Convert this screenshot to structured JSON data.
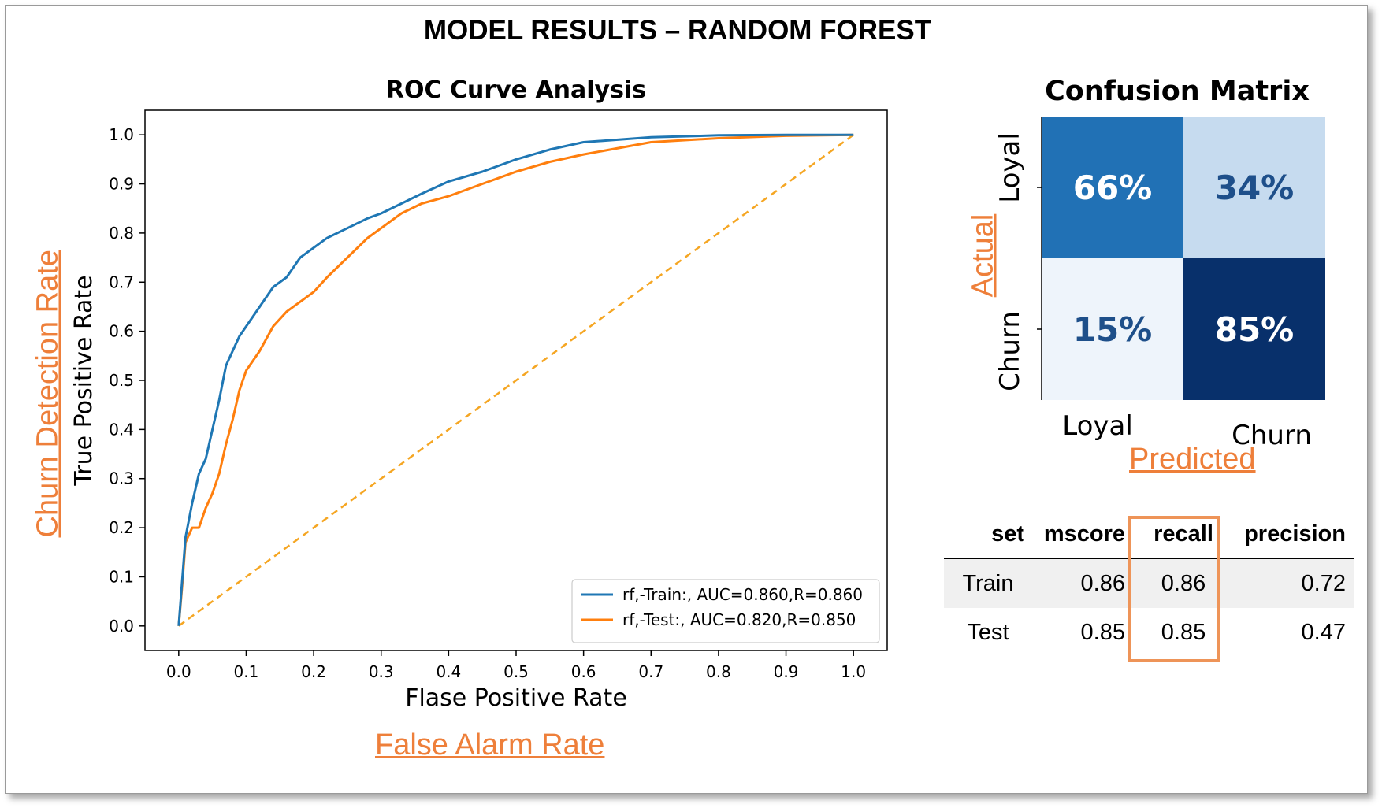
{
  "page": {
    "title": "MODEL RESULTS – RANDOM FOREST"
  },
  "chart_data": [
    {
      "type": "line",
      "title": "ROC Curve Analysis",
      "xlabel": "Flase Positive Rate",
      "ylabel": "True Positive Rate",
      "xlim": [
        -0.05,
        1.05
      ],
      "ylim": [
        -0.05,
        1.05
      ],
      "xticks": [
        "0.0",
        "0.1",
        "0.2",
        "0.3",
        "0.4",
        "0.5",
        "0.6",
        "0.7",
        "0.8",
        "0.9",
        "1.0"
      ],
      "yticks": [
        "0.0",
        "0.1",
        "0.2",
        "0.3",
        "0.4",
        "0.5",
        "0.6",
        "0.7",
        "0.8",
        "0.9",
        "1.0"
      ],
      "grid": false,
      "legend_position": "lower-right",
      "series": [
        {
          "name": "rf,-Train:, AUC=0.860,R=0.860",
          "color": "#1f77b4",
          "x": [
            0,
            0.005,
            0.01,
            0.02,
            0.03,
            0.04,
            0.05,
            0.06,
            0.07,
            0.08,
            0.09,
            0.1,
            0.12,
            0.14,
            0.16,
            0.18,
            0.2,
            0.22,
            0.25,
            0.28,
            0.3,
            0.33,
            0.36,
            0.4,
            0.45,
            0.5,
            0.55,
            0.6,
            0.7,
            0.8,
            0.9,
            1.0
          ],
          "y": [
            0,
            0.09,
            0.18,
            0.25,
            0.31,
            0.34,
            0.4,
            0.46,
            0.53,
            0.56,
            0.59,
            0.61,
            0.65,
            0.69,
            0.71,
            0.75,
            0.77,
            0.79,
            0.81,
            0.83,
            0.84,
            0.86,
            0.88,
            0.905,
            0.925,
            0.95,
            0.97,
            0.985,
            0.995,
            0.999,
            1.0,
            1.0
          ]
        },
        {
          "name": "rf,-Test:, AUC=0.820,R=0.850",
          "color": "#ff7f0e",
          "x": [
            0,
            0.005,
            0.01,
            0.02,
            0.03,
            0.04,
            0.05,
            0.06,
            0.07,
            0.08,
            0.09,
            0.1,
            0.12,
            0.14,
            0.16,
            0.18,
            0.2,
            0.22,
            0.25,
            0.28,
            0.3,
            0.33,
            0.36,
            0.4,
            0.45,
            0.5,
            0.55,
            0.6,
            0.7,
            0.8,
            0.9,
            1.0
          ],
          "y": [
            0,
            0.08,
            0.17,
            0.2,
            0.2,
            0.24,
            0.27,
            0.31,
            0.37,
            0.42,
            0.48,
            0.52,
            0.56,
            0.61,
            0.64,
            0.66,
            0.68,
            0.71,
            0.75,
            0.79,
            0.81,
            0.84,
            0.86,
            0.875,
            0.9,
            0.925,
            0.945,
            0.96,
            0.985,
            0.993,
            0.998,
            1.0
          ]
        },
        {
          "name": "",
          "color": "#f5a623",
          "dashed": true,
          "x": [
            0,
            1
          ],
          "y": [
            0,
            1
          ]
        }
      ]
    },
    {
      "type": "heatmap",
      "title": "Confusion Matrix",
      "ylabel": "Actual",
      "xlabel": "Predicted",
      "rows": [
        "Loyal",
        "Churn"
      ],
      "columns": [
        "Loyal",
        "Churn"
      ],
      "values": [
        [
          66,
          34
        ],
        [
          15,
          85
        ]
      ],
      "labels": [
        "66%",
        "34%",
        "15%",
        "85%"
      ],
      "colors": [
        [
          "#2171b5",
          "#c6dbef"
        ],
        [
          "#eef4fb",
          "#08306b"
        ]
      ],
      "text_colors": [
        [
          "#ffffff",
          "#1e4f8a"
        ],
        [
          "#1e4f8a",
          "#ffffff"
        ]
      ]
    },
    {
      "type": "table",
      "columns": [
        "set",
        "mscore",
        "recall",
        "precision"
      ],
      "rows": [
        [
          "Train",
          "0.86",
          "0.86",
          "0.72"
        ],
        [
          "Test",
          "0.85",
          "0.85",
          "0.47"
        ]
      ],
      "highlight_column": "recall",
      "highlight_color": "#ee9458"
    }
  ],
  "annotations": {
    "y_axis_note": "Churn Detection Rate",
    "x_axis_note": "False Alarm Rate",
    "accent_color": "#ee7f3a"
  }
}
